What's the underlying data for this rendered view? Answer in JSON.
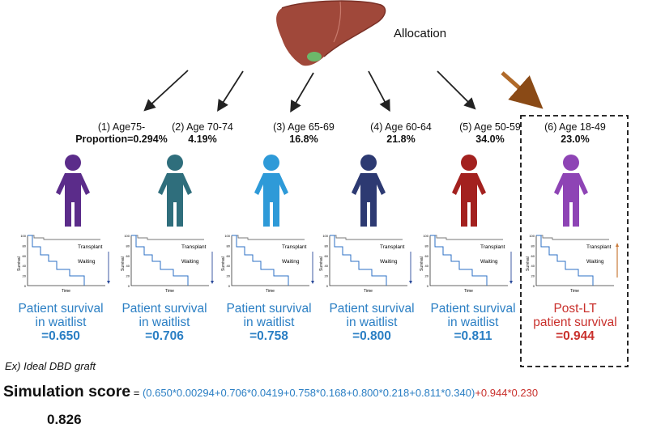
{
  "header": {
    "allocation_label": "Allocation"
  },
  "groups": [
    {
      "label": "(1) Age75-",
      "proportion": "Proportion=0.294%",
      "color": "#5b2c8a",
      "survival_line1": "Patient survival",
      "survival_line2": "in waitlist",
      "survival_value": "=0.650"
    },
    {
      "label": "(2) Age 70-74",
      "proportion": "4.19%",
      "color": "#2f6e7c",
      "survival_line1": "Patient survival",
      "survival_line2": "in waitlist",
      "survival_value": "=0.706"
    },
    {
      "label": "(3) Age 65-69",
      "proportion": "16.8%",
      "color": "#2e9ad8",
      "survival_line1": "Patient survival",
      "survival_line2": "in waitlist",
      "survival_value": "=0.758"
    },
    {
      "label": "(4) Age 60-64",
      "proportion": "21.8%",
      "color": "#2d3a72",
      "survival_line1": "Patient survival",
      "survival_line2": "in waitlist",
      "survival_value": "=0.800"
    },
    {
      "label": "(5) Age 50-59",
      "proportion": "34.0%",
      "color": "#a3211f",
      "survival_line1": "Patient survival",
      "survival_line2": "in waitlist",
      "survival_value": "=0.811"
    },
    {
      "label": "(6) Age 18-49",
      "proportion": "23.0%",
      "color": "#8e44b5",
      "survival_line1": "Post-LT",
      "survival_line2": "patient survival",
      "survival_value": "=0.944"
    }
  ],
  "curve": {
    "transplant_label": "Transplant",
    "waiting_label": "Waiting",
    "ylabel": "Survival",
    "xlabel": "Time",
    "y_ticks": [
      "100",
      "80",
      "60",
      "40",
      "20",
      "0"
    ]
  },
  "example": {
    "label": "Ex)  Ideal DBD graft"
  },
  "simulation": {
    "label": "Simulation score",
    "equals": " = ",
    "waitlist_terms": "(0.650*0.00294+0.706*0.0419+0.758*0.168+0.800*0.218+0.811*0.340)",
    "post_lt_term": "+0.944*0.230",
    "result": "0.826"
  },
  "colors": {
    "blue_text": "#2b7fc4",
    "red_text": "#c9302c",
    "liver": "#a0483a",
    "gallbladder": "#6cb86a"
  }
}
